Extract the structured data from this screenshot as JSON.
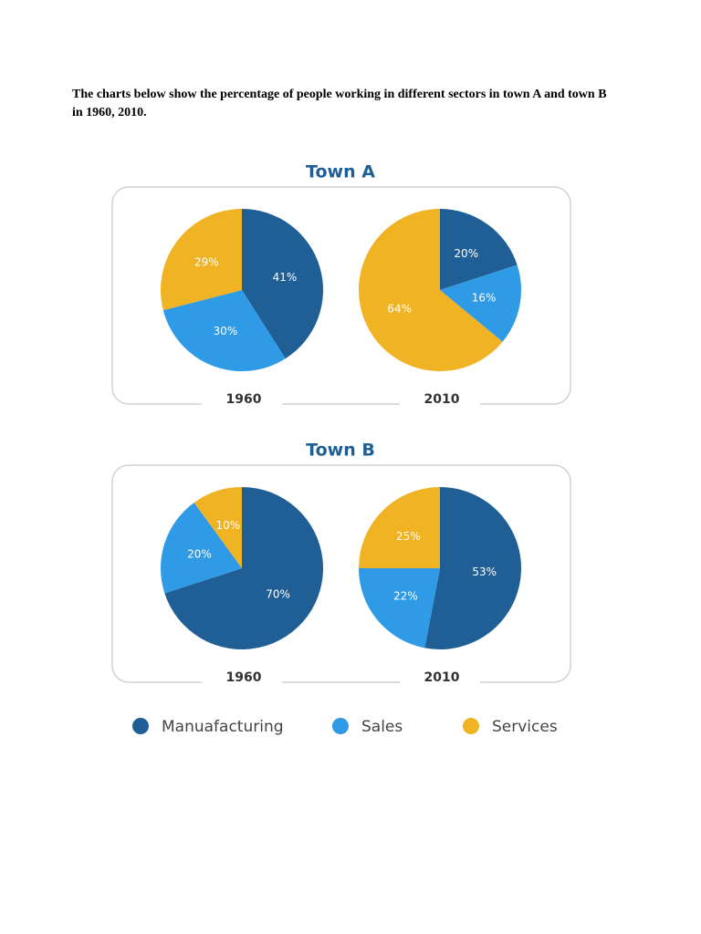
{
  "intro": "The charts below show the percentage of people working in different sectors in town A and town B in 1960, 2010.",
  "panels": [
    {
      "title": "Town A"
    },
    {
      "title": "Town B"
    }
  ],
  "chart_data": [
    {
      "type": "pie",
      "x_label": "1960",
      "categories": [
        "Manuafacturing",
        "Sales",
        "Services"
      ],
      "colors": [
        "#1f5f96",
        "#2f9be6",
        "#f0b323"
      ],
      "values": [
        41,
        30,
        29
      ],
      "value_labels": [
        "41%",
        "30%",
        "29%"
      ]
    },
    {
      "type": "pie",
      "x_label": "2010",
      "categories": [
        "Manuafacturing",
        "Sales",
        "Services"
      ],
      "colors": [
        "#1f5f96",
        "#2f9be6",
        "#f0b323"
      ],
      "values": [
        20,
        16,
        64
      ],
      "value_labels": [
        "20%",
        "16%",
        "64%"
      ]
    },
    {
      "type": "pie",
      "x_label": "1960",
      "categories": [
        "Manuafacturing",
        "Sales",
        "Services"
      ],
      "colors": [
        "#1f5f96",
        "#2f9be6",
        "#f0b323"
      ],
      "values": [
        70,
        20,
        10
      ],
      "value_labels": [
        "70%",
        "20%",
        "10%"
      ]
    },
    {
      "type": "pie",
      "x_label": "2010",
      "categories": [
        "Manuafacturing",
        "Sales",
        "Services"
      ],
      "colors": [
        "#1f5f96",
        "#2f9be6",
        "#f0b323"
      ],
      "values": [
        53,
        22,
        25
      ],
      "value_labels": [
        "53%",
        "22%",
        "25%"
      ]
    }
  ]
}
